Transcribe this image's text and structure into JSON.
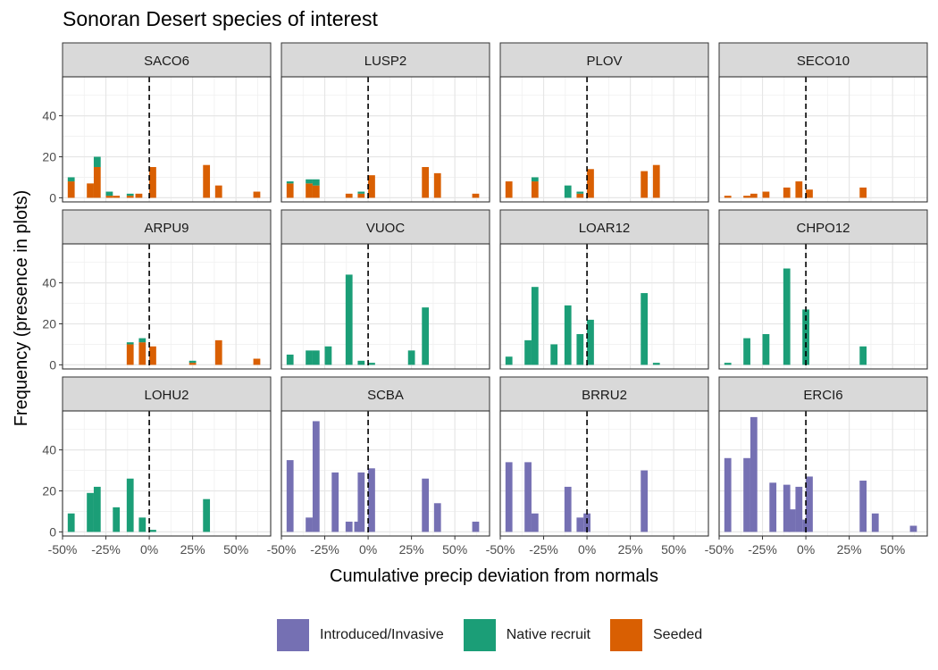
{
  "chart_data": {
    "type": "bar",
    "title": "Sonoran Desert species of interest",
    "xlabel": "Cumulative precip deviation from normals",
    "ylabel": "Frequency (presence in plots)",
    "xlim": [
      -0.5,
      0.7
    ],
    "ylim": [
      -2,
      59
    ],
    "x_ticks": [
      -0.5,
      -0.25,
      0,
      0.25,
      0.5
    ],
    "x_tick_labels": [
      "-50%",
      "-25%",
      "0%",
      "25%",
      "50%"
    ],
    "y_ticks": [
      0,
      20,
      40
    ],
    "y_tick_labels": [
      "0",
      "20",
      "40"
    ],
    "bar_width": 0.04,
    "reference_line_x": 0,
    "grid": true,
    "legend_position": "bottom",
    "colors": {
      "Introduced/Invasive": "#7570b3",
      "Native recruit": "#1b9e77",
      "Seeded": "#d95f02"
    },
    "legend": [
      "Introduced/Invasive",
      "Native recruit",
      "Seeded"
    ],
    "panels": [
      {
        "label": "SACO6",
        "group": "Seeded",
        "bars": [
          {
            "x": -0.45,
            "values": {
              "Seeded": 8,
              "Native recruit": 2
            }
          },
          {
            "x": -0.34,
            "values": {
              "Seeded": 7
            }
          },
          {
            "x": -0.3,
            "values": {
              "Seeded": 15,
              "Native recruit": 5
            }
          },
          {
            "x": -0.23,
            "values": {
              "Seeded": 1,
              "Native recruit": 2
            }
          },
          {
            "x": -0.19,
            "values": {
              "Seeded": 1
            }
          },
          {
            "x": -0.11,
            "values": {
              "Seeded": 1,
              "Native recruit": 1
            }
          },
          {
            "x": -0.06,
            "values": {
              "Seeded": 2
            }
          },
          {
            "x": 0.02,
            "values": {
              "Seeded": 15
            }
          },
          {
            "x": 0.33,
            "values": {
              "Seeded": 16
            }
          },
          {
            "x": 0.4,
            "values": {
              "Seeded": 6
            }
          },
          {
            "x": 0.62,
            "values": {
              "Seeded": 3
            }
          }
        ]
      },
      {
        "label": "LUSP2",
        "group": "Seeded",
        "bars": [
          {
            "x": -0.45,
            "values": {
              "Seeded": 7,
              "Native recruit": 1
            }
          },
          {
            "x": -0.34,
            "values": {
              "Seeded": 7,
              "Native recruit": 2
            }
          },
          {
            "x": -0.3,
            "values": {
              "Seeded": 6,
              "Native recruit": 3
            }
          },
          {
            "x": -0.11,
            "values": {
              "Seeded": 2
            }
          },
          {
            "x": -0.04,
            "values": {
              "Seeded": 2,
              "Native recruit": 1
            }
          },
          {
            "x": 0.02,
            "values": {
              "Seeded": 11
            }
          },
          {
            "x": 0.33,
            "values": {
              "Seeded": 15
            }
          },
          {
            "x": 0.4,
            "values": {
              "Seeded": 12
            }
          },
          {
            "x": 0.62,
            "values": {
              "Seeded": 2
            }
          }
        ]
      },
      {
        "label": "PLOV",
        "group": "Seeded",
        "bars": [
          {
            "x": -0.45,
            "values": {
              "Seeded": 8
            }
          },
          {
            "x": -0.3,
            "values": {
              "Seeded": 8,
              "Native recruit": 2
            }
          },
          {
            "x": -0.11,
            "values": {
              "Native recruit": 6
            }
          },
          {
            "x": -0.04,
            "values": {
              "Seeded": 2,
              "Native recruit": 1
            }
          },
          {
            "x": 0.02,
            "values": {
              "Seeded": 14
            }
          },
          {
            "x": 0.33,
            "values": {
              "Seeded": 13
            }
          },
          {
            "x": 0.4,
            "values": {
              "Seeded": 16
            }
          }
        ]
      },
      {
        "label": "SECO10",
        "group": "Seeded",
        "bars": [
          {
            "x": -0.45,
            "values": {
              "Seeded": 1
            }
          },
          {
            "x": -0.34,
            "values": {
              "Seeded": 1
            }
          },
          {
            "x": -0.3,
            "values": {
              "Seeded": 2
            }
          },
          {
            "x": -0.23,
            "values": {
              "Seeded": 3
            }
          },
          {
            "x": -0.11,
            "values": {
              "Seeded": 5
            }
          },
          {
            "x": -0.04,
            "values": {
              "Seeded": 8
            }
          },
          {
            "x": 0.02,
            "values": {
              "Seeded": 4
            }
          },
          {
            "x": 0.33,
            "values": {
              "Seeded": 5
            }
          }
        ]
      },
      {
        "label": "ARPU9",
        "group": "Seeded",
        "bars": [
          {
            "x": -0.11,
            "values": {
              "Seeded": 10,
              "Native recruit": 1
            }
          },
          {
            "x": -0.04,
            "values": {
              "Seeded": 11,
              "Native recruit": 2
            }
          },
          {
            "x": 0.02,
            "values": {
              "Seeded": 9
            }
          },
          {
            "x": 0.25,
            "values": {
              "Seeded": 1,
              "Native recruit": 1
            }
          },
          {
            "x": 0.4,
            "values": {
              "Seeded": 12
            }
          },
          {
            "x": 0.62,
            "values": {
              "Seeded": 3
            }
          }
        ]
      },
      {
        "label": "VUOC",
        "group": "Native recruit",
        "bars": [
          {
            "x": -0.45,
            "values": {
              "Native recruit": 5
            }
          },
          {
            "x": -0.34,
            "values": {
              "Native recruit": 7
            }
          },
          {
            "x": -0.3,
            "values": {
              "Native recruit": 7
            }
          },
          {
            "x": -0.23,
            "values": {
              "Native recruit": 9
            }
          },
          {
            "x": -0.11,
            "values": {
              "Native recruit": 44
            }
          },
          {
            "x": -0.04,
            "values": {
              "Native recruit": 2
            }
          },
          {
            "x": 0.02,
            "values": {
              "Native recruit": 1
            }
          },
          {
            "x": 0.25,
            "values": {
              "Native recruit": 7
            }
          },
          {
            "x": 0.33,
            "values": {
              "Native recruit": 28
            }
          }
        ]
      },
      {
        "label": "LOAR12",
        "group": "Native recruit",
        "bars": [
          {
            "x": -0.45,
            "values": {
              "Native recruit": 4
            }
          },
          {
            "x": -0.34,
            "values": {
              "Native recruit": 12
            }
          },
          {
            "x": -0.3,
            "values": {
              "Native recruit": 38
            }
          },
          {
            "x": -0.19,
            "values": {
              "Native recruit": 10
            }
          },
          {
            "x": -0.11,
            "values": {
              "Native recruit": 29
            }
          },
          {
            "x": -0.04,
            "values": {
              "Native recruit": 15
            }
          },
          {
            "x": 0.02,
            "values": {
              "Native recruit": 22
            }
          },
          {
            "x": 0.33,
            "values": {
              "Native recruit": 35
            }
          },
          {
            "x": 0.4,
            "values": {
              "Native recruit": 1
            }
          }
        ]
      },
      {
        "label": "CHPO12",
        "group": "Native recruit",
        "bars": [
          {
            "x": -0.45,
            "values": {
              "Native recruit": 1
            }
          },
          {
            "x": -0.34,
            "values": {
              "Native recruit": 13
            }
          },
          {
            "x": -0.23,
            "values": {
              "Native recruit": 15
            }
          },
          {
            "x": -0.11,
            "values": {
              "Native recruit": 47
            }
          },
          {
            "x": 0.0,
            "values": {
              "Native recruit": 27
            }
          },
          {
            "x": 0.33,
            "values": {
              "Native recruit": 9
            }
          }
        ]
      },
      {
        "label": "LOHU2",
        "group": "Native recruit",
        "bars": [
          {
            "x": -0.45,
            "values": {
              "Native recruit": 9
            }
          },
          {
            "x": -0.34,
            "values": {
              "Native recruit": 19
            }
          },
          {
            "x": -0.3,
            "values": {
              "Native recruit": 22
            }
          },
          {
            "x": -0.19,
            "values": {
              "Native recruit": 12
            }
          },
          {
            "x": -0.11,
            "values": {
              "Native recruit": 26
            }
          },
          {
            "x": -0.04,
            "values": {
              "Native recruit": 7
            }
          },
          {
            "x": 0.02,
            "values": {
              "Native recruit": 1
            }
          },
          {
            "x": 0.33,
            "values": {
              "Native recruit": 16
            }
          }
        ]
      },
      {
        "label": "SCBA",
        "group": "Introduced/Invasive",
        "bars": [
          {
            "x": -0.45,
            "values": {
              "Introduced/Invasive": 35
            }
          },
          {
            "x": -0.34,
            "values": {
              "Introduced/Invasive": 7
            }
          },
          {
            "x": -0.3,
            "values": {
              "Introduced/Invasive": 54
            }
          },
          {
            "x": -0.19,
            "values": {
              "Introduced/Invasive": 29
            }
          },
          {
            "x": -0.11,
            "values": {
              "Introduced/Invasive": 5
            }
          },
          {
            "x": -0.06,
            "values": {
              "Introduced/Invasive": 5
            }
          },
          {
            "x": -0.04,
            "values": {
              "Introduced/Invasive": 29
            }
          },
          {
            "x": 0.02,
            "values": {
              "Introduced/Invasive": 31
            }
          },
          {
            "x": 0.33,
            "values": {
              "Introduced/Invasive": 26
            }
          },
          {
            "x": 0.4,
            "values": {
              "Introduced/Invasive": 14
            }
          },
          {
            "x": 0.62,
            "values": {
              "Introduced/Invasive": 5
            }
          }
        ]
      },
      {
        "label": "BRRU2",
        "group": "Introduced/Invasive",
        "bars": [
          {
            "x": -0.45,
            "values": {
              "Introduced/Invasive": 34
            }
          },
          {
            "x": -0.34,
            "values": {
              "Introduced/Invasive": 34
            }
          },
          {
            "x": -0.3,
            "values": {
              "Introduced/Invasive": 9
            }
          },
          {
            "x": -0.11,
            "values": {
              "Introduced/Invasive": 22
            }
          },
          {
            "x": -0.04,
            "values": {
              "Introduced/Invasive": 7
            }
          },
          {
            "x": 0.0,
            "values": {
              "Introduced/Invasive": 9
            }
          },
          {
            "x": 0.33,
            "values": {
              "Introduced/Invasive": 30
            }
          }
        ]
      },
      {
        "label": "ERCI6",
        "group": "Introduced/Invasive",
        "bars": [
          {
            "x": -0.45,
            "values": {
              "Introduced/Invasive": 36
            }
          },
          {
            "x": -0.34,
            "values": {
              "Introduced/Invasive": 36
            }
          },
          {
            "x": -0.3,
            "values": {
              "Introduced/Invasive": 56
            }
          },
          {
            "x": -0.19,
            "values": {
              "Introduced/Invasive": 24
            }
          },
          {
            "x": -0.11,
            "values": {
              "Introduced/Invasive": 23
            }
          },
          {
            "x": -0.08,
            "values": {
              "Introduced/Invasive": 11
            }
          },
          {
            "x": -0.04,
            "values": {
              "Introduced/Invasive": 22
            }
          },
          {
            "x": 0.0,
            "values": {
              "Introduced/Invasive": 6
            }
          },
          {
            "x": 0.02,
            "values": {
              "Introduced/Invasive": 27
            }
          },
          {
            "x": 0.33,
            "values": {
              "Introduced/Invasive": 25
            }
          },
          {
            "x": 0.4,
            "values": {
              "Introduced/Invasive": 9
            }
          },
          {
            "x": 0.62,
            "values": {
              "Introduced/Invasive": 3
            }
          }
        ]
      }
    ]
  }
}
